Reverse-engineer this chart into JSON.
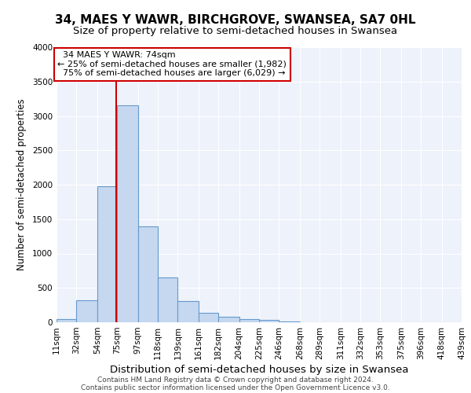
{
  "title": "34, MAES Y WAWR, BIRCHGROVE, SWANSEA, SA7 0HL",
  "subtitle": "Size of property relative to semi-detached houses in Swansea",
  "xlabel": "Distribution of semi-detached houses by size in Swansea",
  "ylabel": "Number of semi-detached properties",
  "bar_color": "#c5d8f0",
  "bar_edge_color": "#6699cc",
  "background_color": "#eef2fb",
  "bin_edges": [
    11,
    32,
    54,
    75,
    97,
    118,
    139,
    161,
    182,
    204,
    225,
    246,
    268,
    289,
    311,
    332,
    353,
    375,
    396,
    418,
    439
  ],
  "bin_labels": [
    "11sqm",
    "32sqm",
    "54sqm",
    "75sqm",
    "97sqm",
    "118sqm",
    "139sqm",
    "161sqm",
    "182sqm",
    "204sqm",
    "225sqm",
    "246sqm",
    "268sqm",
    "289sqm",
    "311sqm",
    "332sqm",
    "353sqm",
    "375sqm",
    "396sqm",
    "418sqm",
    "439sqm"
  ],
  "bar_heights": [
    50,
    320,
    1980,
    3160,
    1400,
    650,
    310,
    135,
    80,
    45,
    30,
    10,
    5,
    5,
    5,
    2,
    2,
    2,
    2,
    2
  ],
  "property_value": 74,
  "property_label": "34 MAES Y WAWR: 74sqm",
  "pct_smaller": 25,
  "pct_smaller_count": "1,982",
  "pct_larger": 75,
  "pct_larger_count": "6,029",
  "vline_color": "#cc0000",
  "ylim": [
    0,
    4000
  ],
  "yticks": [
    0,
    500,
    1000,
    1500,
    2000,
    2500,
    3000,
    3500,
    4000
  ],
  "annotation_box_edge_color": "#cc0000",
  "footer_line1": "Contains HM Land Registry data © Crown copyright and database right 2024.",
  "footer_line2": "Contains public sector information licensed under the Open Government Licence v3.0.",
  "title_fontsize": 11,
  "subtitle_fontsize": 9.5,
  "xlabel_fontsize": 9.5,
  "ylabel_fontsize": 8.5,
  "tick_fontsize": 7.5,
  "footer_fontsize": 6.5
}
